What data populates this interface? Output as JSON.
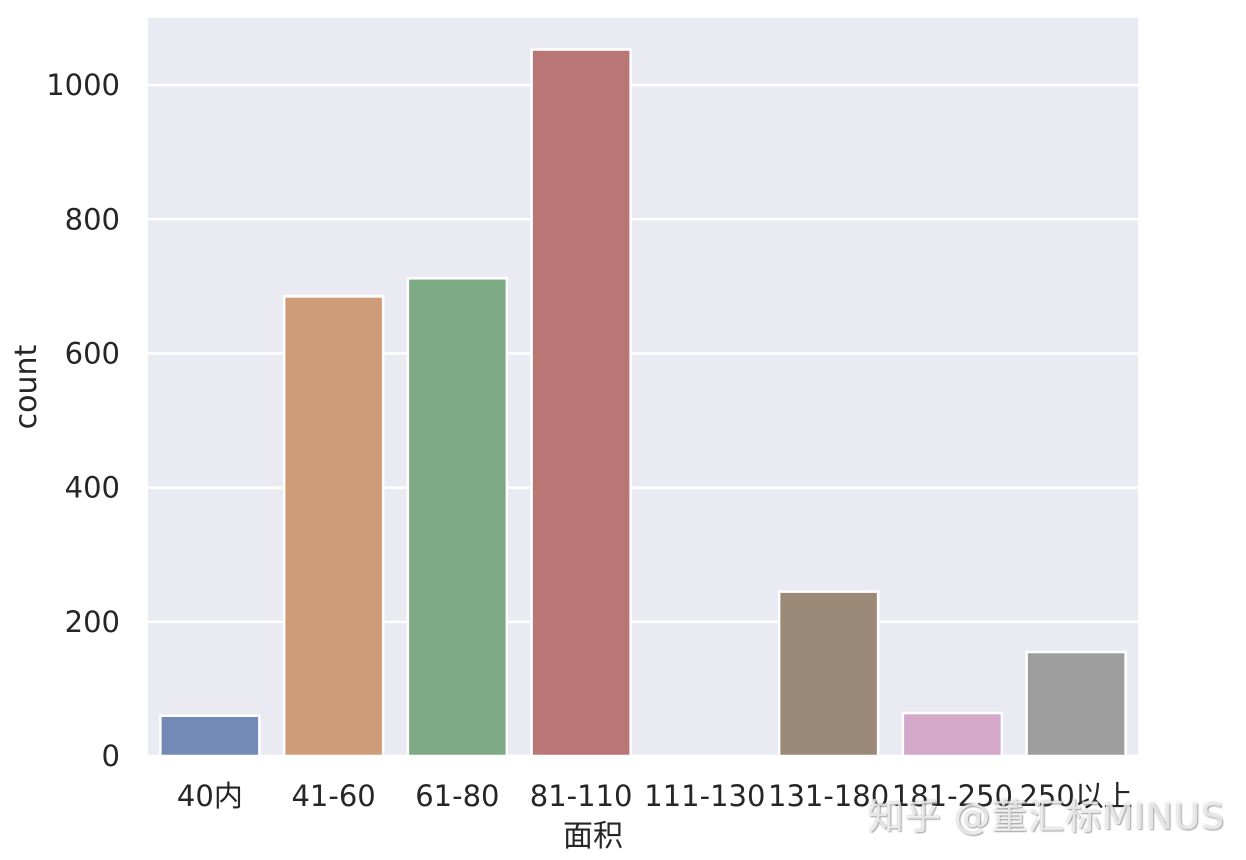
{
  "chart_data": {
    "type": "bar",
    "categories": [
      "40内",
      "41-60",
      "61-80",
      "81-110",
      "111-130",
      "131-180",
      "181-250",
      "250以上"
    ],
    "values": [
      60,
      685,
      712,
      1053,
      0,
      245,
      64,
      155
    ],
    "title": "",
    "xlabel": "面积",
    "ylabel": "count",
    "ylim": [
      0,
      1100
    ],
    "yticks": [
      0,
      200,
      400,
      600,
      800,
      1000
    ],
    "grid": true,
    "legend": "none",
    "colors": [
      "#728ab5",
      "#cf9c79",
      "#7faa86",
      "#b87774",
      "#8c7fb0",
      "#9c8a79",
      "#d4a8c9",
      "#9e9e9e"
    ],
    "background": "#eaeaf2"
  },
  "watermark": "知乎 @董汇标MINUS"
}
